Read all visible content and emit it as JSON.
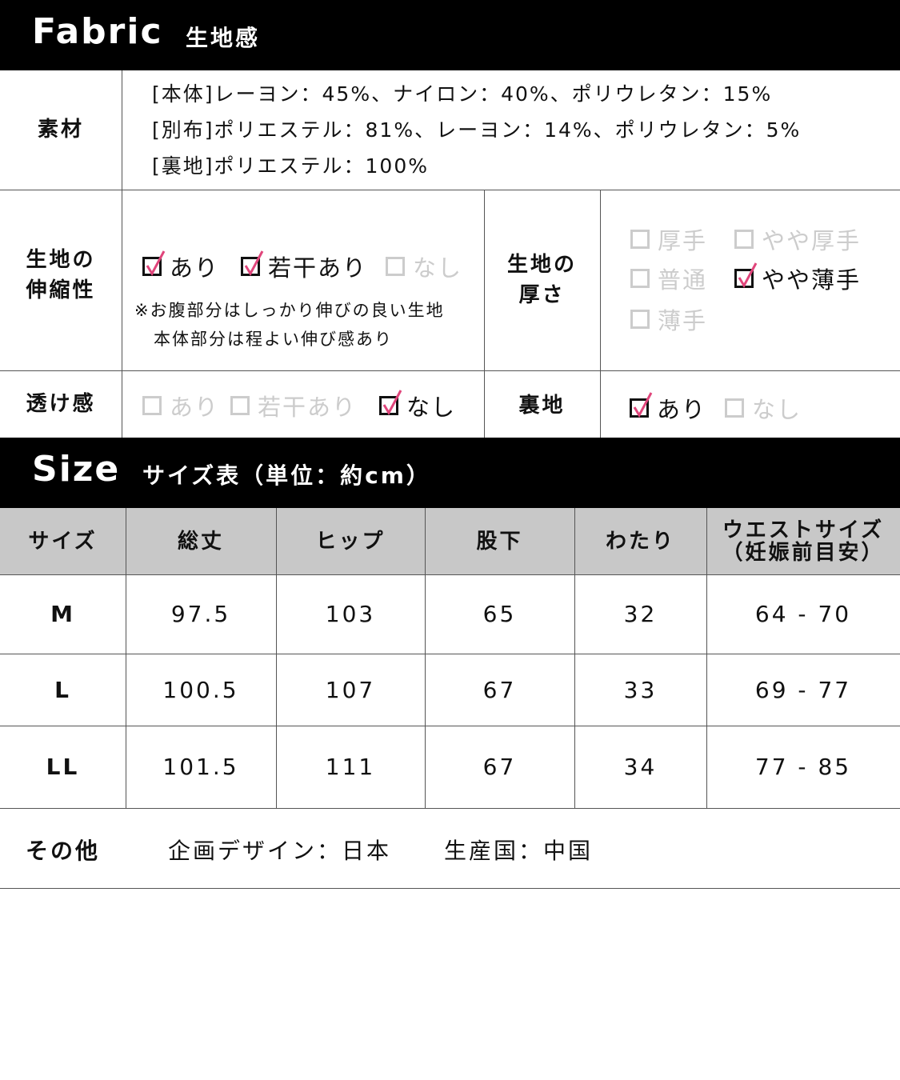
{
  "fabric": {
    "title": "Fabric",
    "subtitle": "生地感",
    "material_label": "素材",
    "materials": [
      "[本体]レーヨン：45%、ナイロン：40%、ポリウレタン：15%",
      "[別布]ポリエステル：81%、レーヨン：14%、ポリウレタン：5%",
      "[裏地]ポリエステル：100%"
    ],
    "stretch_label": [
      "生地の",
      "伸縮性"
    ],
    "stretch_options": [
      {
        "label": "あり",
        "checked": true
      },
      {
        "label": "若干あり",
        "checked": true
      },
      {
        "label": "なし",
        "checked": false
      }
    ],
    "stretch_note": [
      "※お腹部分はしっかり伸びの良い生地",
      "本体部分は程よい伸び感あり"
    ],
    "thickness_label": [
      "生地の",
      "厚さ"
    ],
    "thickness_options": [
      {
        "label": "厚手",
        "checked": false
      },
      {
        "label": "やや厚手",
        "checked": false
      },
      {
        "label": "普通",
        "checked": false
      },
      {
        "label": "やや薄手",
        "checked": true
      },
      {
        "label": "薄手",
        "checked": false
      }
    ],
    "sheer_label": "透け感",
    "sheer_options": [
      {
        "label": "あり",
        "checked": false
      },
      {
        "label": "若干あり",
        "checked": false
      },
      {
        "label": "なし",
        "checked": true
      }
    ],
    "lining_label": "裏地",
    "lining_options": [
      {
        "label": "あり",
        "checked": true
      },
      {
        "label": "なし",
        "checked": false
      }
    ]
  },
  "size": {
    "title": "Size",
    "subtitle": "サイズ表（単位：約cm）",
    "headers": [
      "サイズ",
      "総丈",
      "ヒップ",
      "股下",
      "わたり",
      "ウエストサイズ\n（妊娠前目安）"
    ],
    "rows": [
      [
        "M",
        "97.5",
        "103",
        "65",
        "32",
        "64 - 70"
      ],
      [
        "L",
        "100.5",
        "107",
        "67",
        "33",
        "69 - 77"
      ],
      [
        "LL",
        "101.5",
        "111",
        "67",
        "34",
        "77 - 85"
      ]
    ]
  },
  "other": {
    "label": "その他",
    "design": "企画デザイン：日本",
    "origin": "生産国：中国"
  },
  "colors": {
    "check": "#e0457b",
    "unchecked": "#cccccc",
    "header_bg": "#000000",
    "table_header_bg": "#c8c8c8"
  }
}
